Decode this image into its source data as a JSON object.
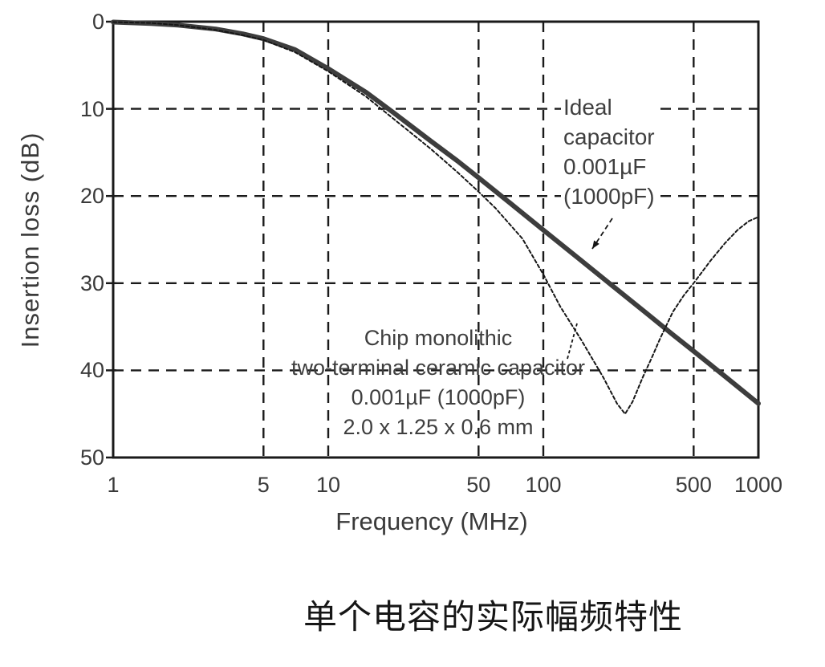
{
  "caption": "单个电容的实际幅频特性",
  "colors": {
    "axis": "#1a1a1a",
    "grid": "#1a1a1a",
    "ideal_curve": "#3d3d3d",
    "real_curve": "#161616",
    "text": "#3a3a3a"
  },
  "annotations": {
    "ideal": {
      "lines": [
        "Ideal",
        "capacitor",
        "0.001µF",
        "(1000pF)"
      ]
    },
    "chip": {
      "lines": [
        "Chip monolithic",
        "two-terminal ceramic capacitor",
        "0.001µF (1000pF)",
        "2.0 x 1.25 x 0.6 mm"
      ]
    }
  },
  "chart_data": {
    "type": "line",
    "title": "",
    "xlabel": "Frequency (MHz)",
    "ylabel": "Insertion loss (dB)",
    "x_scale": "log",
    "x_range": [
      1,
      1000
    ],
    "y_range": [
      0,
      50
    ],
    "y_inverted": true,
    "grid": "dashed",
    "x_ticks": [
      1,
      5,
      10,
      50,
      100,
      500,
      1000
    ],
    "y_ticks": [
      0,
      10,
      20,
      30,
      40,
      50
    ],
    "x_gridlines": [
      5,
      10,
      50,
      100,
      500
    ],
    "y_gridlines": [
      10,
      20,
      30,
      40
    ],
    "legend_position": "none",
    "series": [
      {
        "name": "Ideal capacitor 0.001µF (1000pF)",
        "style": "thick",
        "color": "#3d3d3d",
        "points": [
          [
            1,
            0.05
          ],
          [
            1.5,
            0.2
          ],
          [
            2,
            0.4
          ],
          [
            3,
            0.85
          ],
          [
            4,
            1.4
          ],
          [
            5,
            1.95
          ],
          [
            7,
            3.2
          ],
          [
            10,
            5.4
          ],
          [
            15,
            8.1
          ],
          [
            20,
            10.4
          ],
          [
            30,
            13.7
          ],
          [
            40,
            16.0
          ],
          [
            50,
            17.9
          ],
          [
            70,
            20.8
          ],
          [
            100,
            23.9
          ],
          [
            150,
            27.4
          ],
          [
            200,
            29.9
          ],
          [
            300,
            33.4
          ],
          [
            400,
            35.9
          ],
          [
            500,
            37.8
          ],
          [
            700,
            40.7
          ],
          [
            1000,
            43.8
          ]
        ]
      },
      {
        "name": "Chip monolithic two-terminal ceramic capacitor 0.001µF (1000pF) 2.0 x 1.25 x 0.6 mm",
        "style": "thin-dashed",
        "color": "#161616",
        "points": [
          [
            1,
            0.05
          ],
          [
            1.5,
            0.15
          ],
          [
            2,
            0.4
          ],
          [
            3,
            0.95
          ],
          [
            4,
            1.55
          ],
          [
            5,
            2.1
          ],
          [
            7,
            3.5
          ],
          [
            10,
            5.7
          ],
          [
            15,
            8.6
          ],
          [
            20,
            11.1
          ],
          [
            30,
            14.6
          ],
          [
            40,
            17.3
          ],
          [
            50,
            19.5
          ],
          [
            60,
            21.4
          ],
          [
            80,
            24.9
          ],
          [
            100,
            29.0
          ],
          [
            120,
            32.7
          ],
          [
            150,
            36.5
          ],
          [
            190,
            40.8
          ],
          [
            220,
            43.8
          ],
          [
            240,
            45.0
          ],
          [
            260,
            43.6
          ],
          [
            290,
            40.8
          ],
          [
            320,
            38.5
          ],
          [
            350,
            36.3
          ],
          [
            400,
            33.3
          ],
          [
            450,
            31.4
          ],
          [
            500,
            30.0
          ],
          [
            600,
            27.4
          ],
          [
            700,
            25.4
          ],
          [
            800,
            23.9
          ],
          [
            900,
            22.9
          ],
          [
            1000,
            22.4
          ]
        ]
      }
    ],
    "annotations_meaning": {
      "resonance_dip_MHz": 240,
      "resonance_dip_dB": 45,
      "value_at_1000MHz_ideal_dB": 43.8,
      "value_at_1000MHz_real_dB": 22.4
    }
  }
}
